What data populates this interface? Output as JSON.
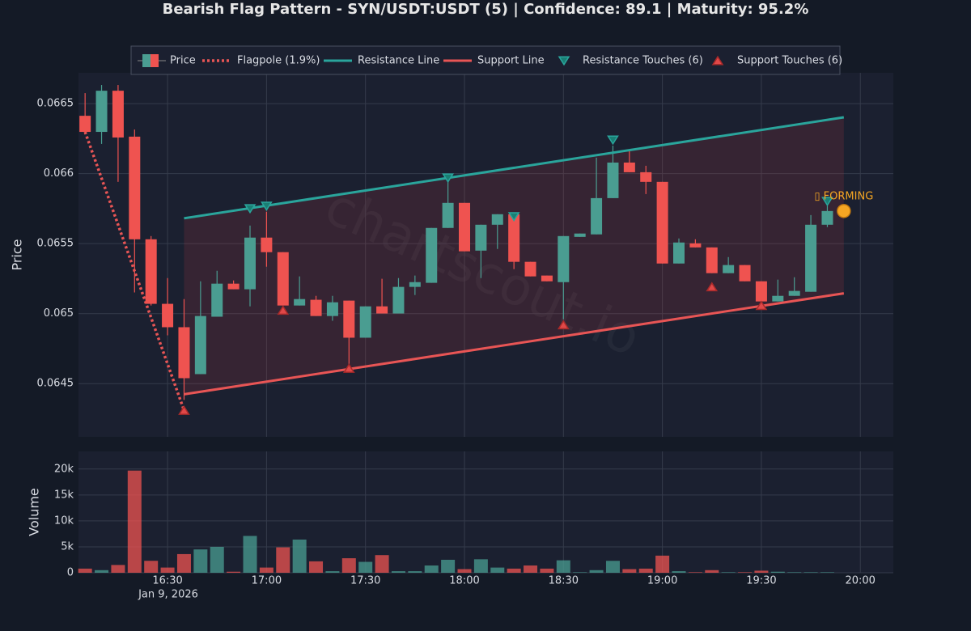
{
  "chart_data": {
    "type": "candlestick",
    "title": "Bearish Flag Pattern - SYN/USDT:USDT (5) | Confidence: 89.1 | Maturity: 95.2%",
    "watermark": "chartscout.io",
    "ylabel": "Price",
    "price_name": "Price",
    "up_color": "#4a9d91",
    "down_color": "#ef5350",
    "x": [
      "16:05",
      "16:10",
      "16:15",
      "16:20",
      "16:25",
      "16:30",
      "16:35",
      "16:40",
      "16:45",
      "16:50",
      "16:55",
      "17:00",
      "17:05",
      "17:10",
      "17:15",
      "17:20",
      "17:25",
      "17:30",
      "17:35",
      "17:40",
      "17:45",
      "17:50",
      "17:55",
      "18:00",
      "18:05",
      "18:10",
      "18:15",
      "18:20",
      "18:25",
      "18:30",
      "18:35",
      "18:40",
      "18:45",
      "18:50",
      "18:55",
      "19:00",
      "19:05",
      "19:10",
      "19:15",
      "19:20",
      "19:25",
      "19:30",
      "19:35",
      "19:40",
      "19:45",
      "19:50"
    ],
    "open": [
      0.066413,
      0.066298,
      0.066592,
      0.066264,
      0.065531,
      0.06507,
      0.064903,
      0.064568,
      0.064978,
      0.065214,
      0.065174,
      0.065543,
      0.065439,
      0.065058,
      0.065099,
      0.064983,
      0.065093,
      0.064828,
      0.065052,
      0.065001,
      0.065191,
      0.06522,
      0.065612,
      0.065791,
      0.06545,
      0.065635,
      0.06571,
      0.06537,
      0.065272,
      0.065225,
      0.065548,
      0.065566,
      0.065825,
      0.066079,
      0.06601,
      0.065941,
      0.065358,
      0.065502,
      0.065473,
      0.065289,
      0.065347,
      0.065231,
      0.065087,
      0.065127,
      0.065156,
      0.065635
    ],
    "high": [
      0.066575,
      0.066633,
      0.066633,
      0.066315,
      0.065554,
      0.065254,
      0.065104,
      0.065231,
      0.065306,
      0.065237,
      0.065629,
      0.065727,
      0.065439,
      0.065266,
      0.065127,
      0.065127,
      0.065093,
      0.065052,
      0.065249,
      0.065254,
      0.065272,
      0.065612,
      0.065941,
      0.065791,
      0.065635,
      0.06571,
      0.065721,
      0.06537,
      0.065272,
      0.065554,
      0.065572,
      0.066114,
      0.0662,
      0.066166,
      0.066056,
      0.065941,
      0.065537,
      0.065531,
      0.065473,
      0.065404,
      0.065347,
      0.065231,
      0.065243,
      0.06526,
      0.065704,
      0.065773
    ],
    "low": [
      0.066287,
      0.066212,
      0.065941,
      0.065151,
      0.065058,
      0.064845,
      0.064384,
      0.064568,
      0.064978,
      0.065174,
      0.065052,
      0.065335,
      0.065058,
      0.065058,
      0.064983,
      0.064949,
      0.064631,
      0.064828,
      0.065001,
      0.065001,
      0.065133,
      0.06522,
      0.065612,
      0.065445,
      0.065254,
      0.065462,
      0.065318,
      0.065266,
      0.065231,
      0.06496,
      0.065548,
      0.065566,
      0.065825,
      0.06601,
      0.065854,
      0.065358,
      0.065358,
      0.065473,
      0.065289,
      0.065289,
      0.065231,
      0.065087,
      0.065087,
      0.065127,
      0.065156,
      0.065618
    ],
    "close": [
      0.066298,
      0.066592,
      0.066258,
      0.065531,
      0.06507,
      0.064903,
      0.064539,
      0.064983,
      0.065214,
      0.065174,
      0.065543,
      0.065439,
      0.065058,
      0.065104,
      0.064983,
      0.065081,
      0.064828,
      0.065052,
      0.065001,
      0.065191,
      0.065225,
      0.065612,
      0.065791,
      0.065445,
      0.065635,
      0.06571,
      0.06537,
      0.065266,
      0.065231,
      0.065554,
      0.065572,
      0.065825,
      0.066079,
      0.06601,
      0.065941,
      0.065358,
      0.065508,
      0.065473,
      0.065289,
      0.065347,
      0.065231,
      0.065087,
      0.065127,
      0.065162,
      0.065635,
      0.065733
    ],
    "xlim": [
      "16:03",
      "20:10"
    ],
    "xticks": [
      "16:30",
      "17:00",
      "17:30",
      "18:00",
      "18:30",
      "19:00",
      "19:30",
      "20:00"
    ],
    "xtick_date": "Jan 9, 2026",
    "ylim": [
      0.06412,
      0.06672
    ],
    "yticks": [
      0.0645,
      0.065,
      0.0655,
      0.066,
      0.0665
    ],
    "grid": true,
    "flagpole": {
      "name": "Flagpole (1.9%)",
      "color": "#e85555",
      "x": [
        "16:05",
        "16:35"
      ],
      "y": [
        0.066298,
        0.064309
      ]
    },
    "resistance": {
      "name": "Resistance Line",
      "color": "#2aa59c",
      "x": [
        "16:35",
        "19:55"
      ],
      "y": [
        0.065681,
        0.066402
      ]
    },
    "support": {
      "name": "Support Line",
      "color": "#e85555",
      "x": [
        "16:35",
        "19:55"
      ],
      "y": [
        0.064424,
        0.065145
      ]
    },
    "resistance_touches": {
      "name": "Resistance Touches (6)",
      "color": "#1a7f74",
      "x": [
        "16:55",
        "17:00",
        "17:55",
        "18:15",
        "18:45",
        "19:50"
      ],
      "y": [
        0.06575,
        0.065768,
        0.065969,
        0.065693,
        0.06624,
        0.065802
      ]
    },
    "support_touches": {
      "name": "Support Touches (6)",
      "color": "#e04848",
      "x": [
        "16:35",
        "17:05",
        "17:25",
        "18:30",
        "19:15",
        "19:30"
      ],
      "y": [
        0.064309,
        0.065024,
        0.064609,
        0.06492,
        0.065191,
        0.065058
      ]
    },
    "annotation": {
      "text": "▯ FORMING",
      "x": "19:55",
      "y": 0.065733,
      "color": "#f5a623"
    },
    "volume_label": "Volume",
    "volume": [
      800,
      500,
      1500,
      19700,
      2300,
      1000,
      3600,
      4500,
      5000,
      200,
      7100,
      1000,
      4900,
      6400,
      2200,
      300,
      2800,
      2100,
      3400,
      300,
      300,
      1400,
      2500,
      700,
      2600,
      1000,
      800,
      1400,
      800,
      2400,
      100,
      500,
      2300,
      700,
      800,
      3300,
      300,
      100,
      500,
      100,
      100,
      400,
      200,
      100,
      100,
      100
    ],
    "volume_ylim": [
      0,
      23400
    ],
    "volume_yticks": [
      0,
      {
        "value": 5000,
        "label": "5k"
      },
      {
        "value": 10000,
        "label": "10k"
      },
      {
        "value": 15000,
        "label": "15k"
      },
      {
        "value": 20000,
        "label": "20k"
      }
    ]
  }
}
